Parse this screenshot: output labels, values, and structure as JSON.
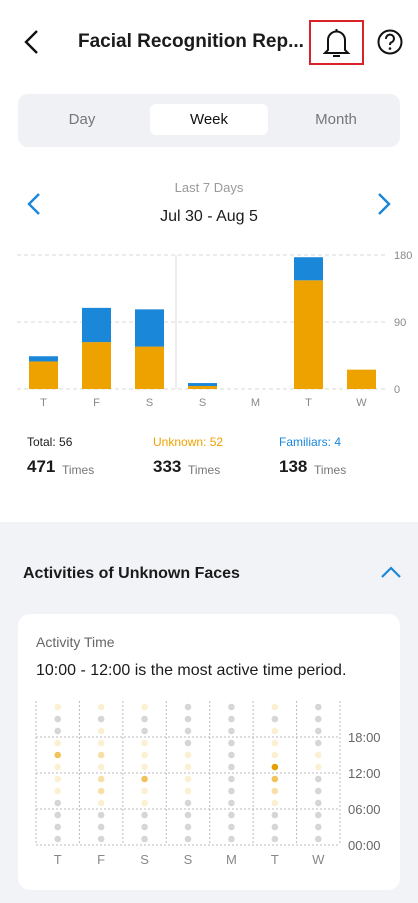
{
  "header": {
    "title": "Facial Recognition Rep..."
  },
  "tabs": [
    "Day",
    "Week",
    "Month"
  ],
  "selected_tab": 1,
  "period": {
    "label": "Last 7 Days",
    "range": "Jul 30 - Aug 5"
  },
  "chart_data": [
    {
      "type": "bar",
      "stacked": true,
      "categories": [
        "T",
        "F",
        "S",
        "S",
        "M",
        "T",
        "W"
      ],
      "series": [
        {
          "color": "#eea200",
          "values": [
            37,
            63,
            57,
            4,
            0,
            146,
            26
          ]
        },
        {
          "color": "#1a87d9",
          "values": [
            7,
            46,
            50,
            4,
            0,
            31,
            0
          ]
        }
      ],
      "ylim": [
        0,
        180
      ],
      "yticks": [
        0,
        90,
        180
      ],
      "grid": true
    },
    {
      "type": "heatmap",
      "title": "Activity Time",
      "subtitle": "10:00 - 12:00 is the most active time period.",
      "categories": [
        "T",
        "F",
        "S",
        "S",
        "M",
        "T",
        "W"
      ],
      "ylim": [
        0,
        24
      ],
      "yticks": [
        {
          "value": 0,
          "label": "00:00"
        },
        {
          "value": 6,
          "label": "06:00"
        },
        {
          "value": 12,
          "label": "12:00"
        },
        {
          "value": 18,
          "label": "18:00"
        }
      ],
      "colors": [
        "#d6d6d6",
        "#fbf0d2",
        "#f8dfa6",
        "#f2c35c",
        "#e3a000"
      ],
      "values": [
        [
          0,
          0,
          0,
          0,
          1,
          1,
          1,
          3,
          1,
          0,
          0,
          1
        ],
        [
          0,
          0,
          0,
          1,
          2,
          2,
          1,
          2,
          1,
          1,
          0,
          1
        ],
        [
          0,
          0,
          0,
          1,
          1,
          3,
          1,
          1,
          1,
          0,
          0,
          1
        ],
        [
          0,
          0,
          0,
          0,
          1,
          1,
          1,
          1,
          0,
          0,
          0,
          0
        ],
        [
          0,
          0,
          0,
          0,
          0,
          0,
          0,
          0,
          0,
          0,
          0,
          0
        ],
        [
          0,
          0,
          0,
          1,
          2,
          3,
          4,
          1,
          1,
          1,
          0,
          1
        ],
        [
          0,
          0,
          0,
          0,
          0,
          0,
          1,
          1,
          0,
          0,
          0,
          0
        ]
      ]
    }
  ],
  "stats": [
    {
      "label": "Total: 56",
      "color": "#1b1b1b",
      "value": 471,
      "unit": "Times"
    },
    {
      "label": "Unknown: 52",
      "color": "#eea200",
      "value": 333,
      "unit": "Times"
    },
    {
      "label": "Familiars: 4",
      "color": "#1a87d9",
      "value": 138,
      "unit": "Times"
    }
  ],
  "section": {
    "title": "Activities of Unknown Faces"
  }
}
